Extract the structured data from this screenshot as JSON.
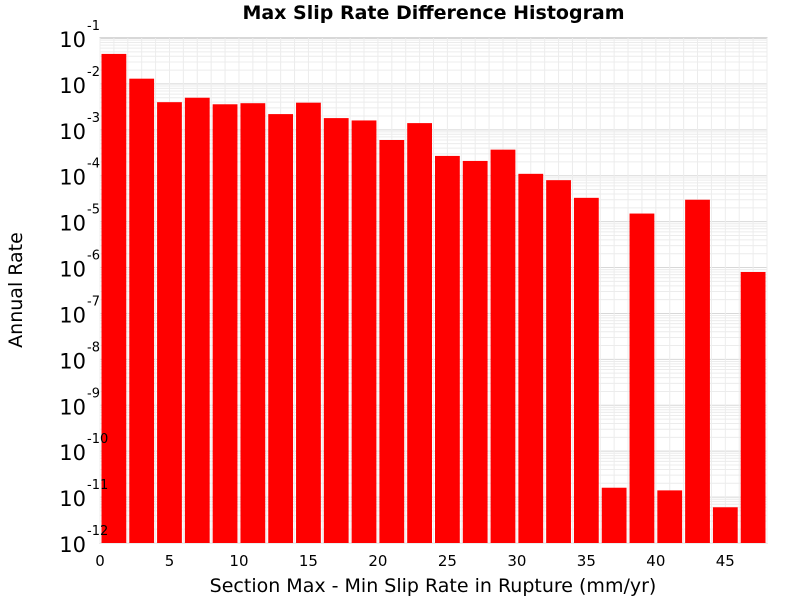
{
  "chart_data": {
    "type": "bar",
    "title": "Max Slip Rate Difference Histogram",
    "xlabel": "Section Max - Min Slip Rate in Rupture (mm/yr)",
    "ylabel": "Annual Rate",
    "y_scale": "log",
    "xlim": [
      0,
      48
    ],
    "ylim": [
      1e-12,
      0.1
    ],
    "grid": true,
    "bar_color": "#ff0000",
    "bin_width": 2,
    "x_ticks": [
      0,
      5,
      10,
      15,
      20,
      25,
      30,
      35,
      40,
      45
    ],
    "y_tick_exponents": [
      -1,
      -2,
      -3,
      -4,
      -5,
      -6,
      -7,
      -8,
      -9,
      -10,
      -11,
      -12
    ],
    "y_tick_base": "10",
    "bins": [
      {
        "x": 1,
        "value": 0.045
      },
      {
        "x": 3,
        "value": 0.013
      },
      {
        "x": 5,
        "value": 0.004
      },
      {
        "x": 7,
        "value": 0.005
      },
      {
        "x": 9,
        "value": 0.0036
      },
      {
        "x": 11,
        "value": 0.0038
      },
      {
        "x": 13,
        "value": 0.0022
      },
      {
        "x": 15,
        "value": 0.0039
      },
      {
        "x": 17,
        "value": 0.0018
      },
      {
        "x": 19,
        "value": 0.0016
      },
      {
        "x": 21,
        "value": 0.0006
      },
      {
        "x": 23,
        "value": 0.0014
      },
      {
        "x": 25,
        "value": 0.00027
      },
      {
        "x": 27,
        "value": 0.00021
      },
      {
        "x": 29,
        "value": 0.00037
      },
      {
        "x": 31,
        "value": 0.00011
      },
      {
        "x": 33,
        "value": 8e-05
      },
      {
        "x": 35,
        "value": 3.3e-05
      },
      {
        "x": 37,
        "value": 1.6e-11
      },
      {
        "x": 39,
        "value": 1.5e-05
      },
      {
        "x": 41,
        "value": 1.4e-11
      },
      {
        "x": 43,
        "value": 3e-05
      },
      {
        "x": 45,
        "value": 6e-12
      },
      {
        "x": 47,
        "value": 8e-07
      }
    ]
  }
}
